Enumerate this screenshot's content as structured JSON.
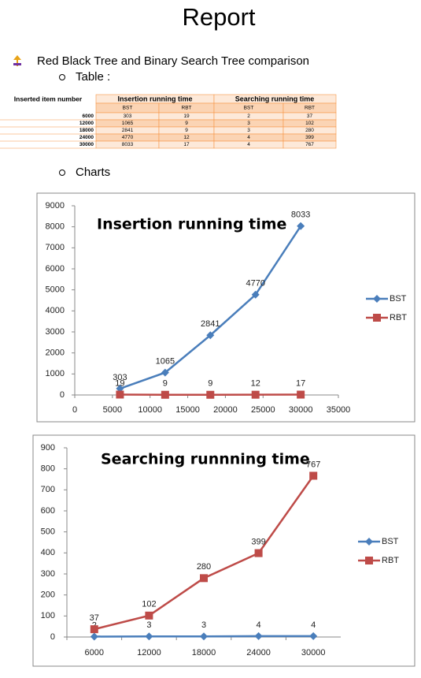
{
  "header": {
    "title": "Report"
  },
  "bullet": "Red Black Tree and Binary Search Tree comparison",
  "sub_items": [
    "Table :",
    "Charts"
  ],
  "table": {
    "columns": [
      "Inserted item number",
      "Insertion running time",
      "Searching running time"
    ],
    "subcolumns": [
      "BST",
      "RBT",
      "BST",
      "RBT"
    ],
    "rows": [
      [
        6000,
        303,
        19,
        2,
        37
      ],
      [
        12000,
        1065,
        9,
        3,
        102
      ],
      [
        18000,
        2841,
        9,
        3,
        280
      ],
      [
        24000,
        4770,
        12,
        4,
        399
      ],
      [
        30000,
        8033,
        17,
        4,
        767
      ]
    ]
  },
  "charts": [
    {
      "type": "line",
      "title": "Insertion running time",
      "x": [
        6000,
        12000,
        18000,
        24000,
        30000
      ],
      "xlim": [
        0,
        35000
      ],
      "xticks": [
        0,
        5000,
        10000,
        15000,
        20000,
        25000,
        30000,
        35000
      ],
      "ylim": [
        0,
        9000
      ],
      "yticks": [
        0,
        1000,
        2000,
        3000,
        4000,
        5000,
        6000,
        7000,
        8000,
        9000
      ],
      "series": [
        {
          "name": "BST",
          "color": "#4a7ebb",
          "marker": "diamond",
          "values": [
            303,
            1065,
            2841,
            4770,
            8033
          ]
        },
        {
          "name": "RBT",
          "color": "#be4b48",
          "marker": "square",
          "values": [
            19,
            9,
            9,
            12,
            17
          ]
        }
      ],
      "legend": "right"
    },
    {
      "type": "line",
      "title": "Searching runnning time",
      "categories": [
        "6000",
        "12000",
        "18000",
        "24000",
        "30000"
      ],
      "ylim": [
        0,
        900
      ],
      "yticks": [
        0,
        100,
        200,
        300,
        400,
        500,
        600,
        700,
        800,
        900
      ],
      "series": [
        {
          "name": "BST",
          "color": "#4a7ebb",
          "marker": "diamond",
          "values": [
            2,
            3,
            3,
            4,
            4
          ]
        },
        {
          "name": "RBT",
          "color": "#be4b48",
          "marker": "square",
          "values": [
            37,
            102,
            280,
            399,
            767
          ]
        }
      ],
      "legend": "right"
    }
  ]
}
